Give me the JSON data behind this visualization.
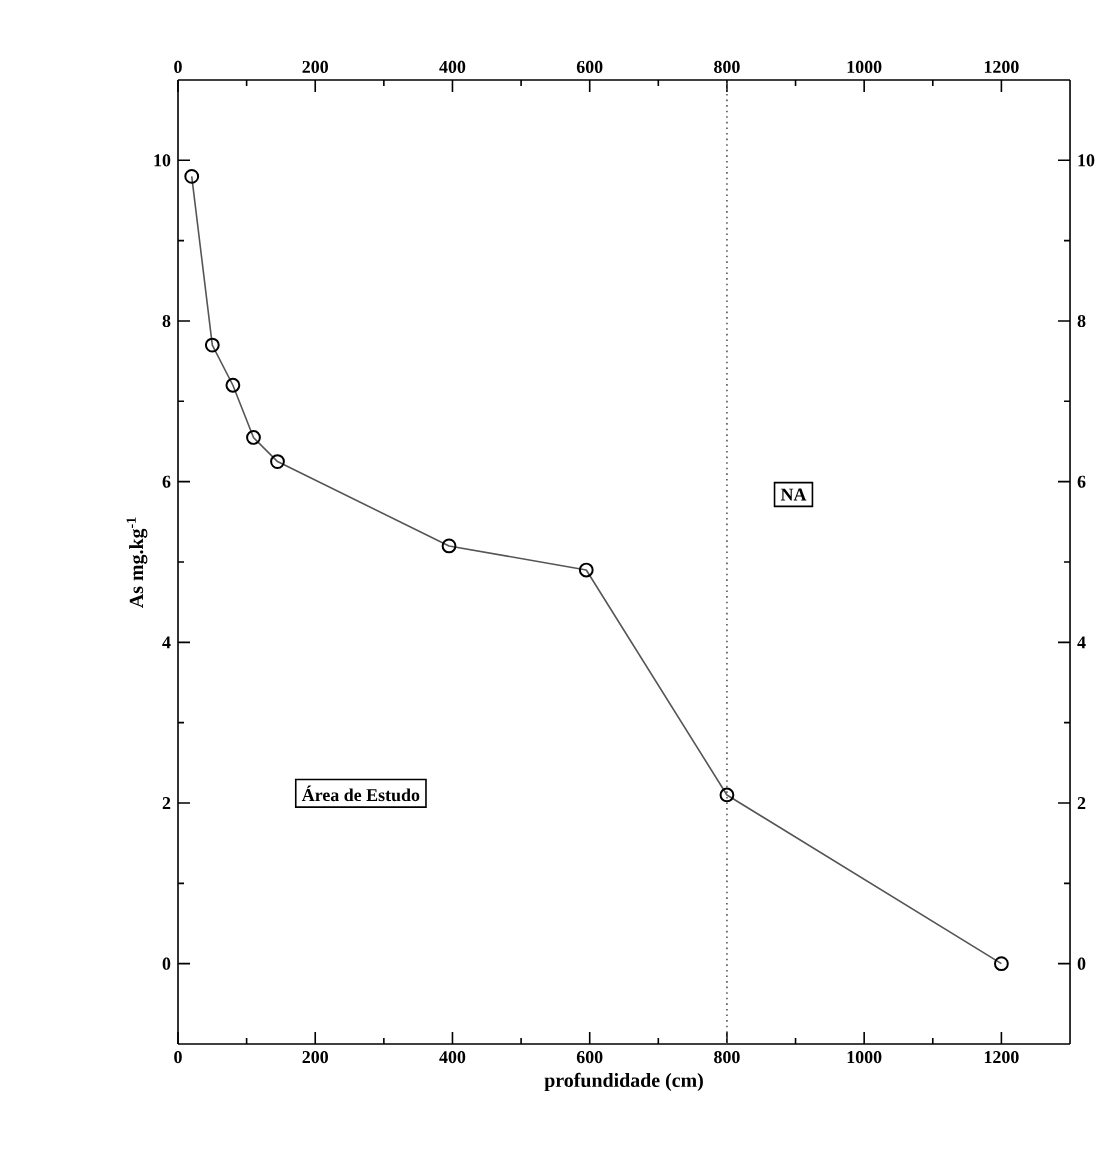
{
  "chart_data": {
    "type": "line",
    "xlabel": "profundidade (cm)",
    "ylabel": "As mg.kg$^{-1}$",
    "x": [
      20,
      50,
      80,
      110,
      145,
      395,
      595,
      800,
      1200
    ],
    "values": [
      9.8,
      7.7,
      7.2,
      6.55,
      6.25,
      5.2,
      4.9,
      2.1,
      0
    ],
    "color": "#555555",
    "marker": "circle",
    "line_style": "solid",
    "xlim": [
      0,
      1300
    ],
    "xticks": [
      0,
      200,
      400,
      600,
      800,
      1000,
      1200
    ],
    "ylim": [
      -1,
      11
    ],
    "yticks": [
      0,
      2,
      4,
      6,
      8,
      10
    ],
    "x2lim": [
      0,
      1300
    ],
    "x2ticks": [
      0,
      200,
      400,
      600,
      800,
      1000,
      1200
    ],
    "y2lim": [
      -1,
      11
    ],
    "y2ticks": [
      0,
      2,
      4,
      6,
      8,
      10
    ],
    "ref_lines": [
      {
        "axis": "x",
        "value": 800,
        "line_style": "dotted",
        "color": "#555555"
      }
    ],
    "annotations": [
      "Área de Estudo",
      "NA"
    ]
  }
}
